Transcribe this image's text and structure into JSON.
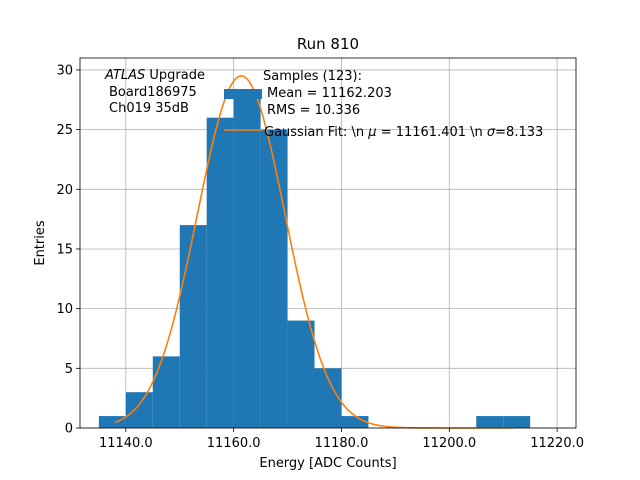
{
  "chart_data": {
    "type": "bar",
    "title": "Run 810",
    "xlabel": "Energy [ADC Counts]",
    "ylabel": "Entries",
    "xlim": [
      11131.5,
      11223.5
    ],
    "ylim": [
      0,
      31
    ],
    "xticks": [
      11140,
      11160,
      11180,
      11200,
      11220
    ],
    "xtick_labels": [
      "11140.0",
      "11160.0",
      "11180.0",
      "11200.0",
      "11220.0"
    ],
    "yticks": [
      0,
      5,
      10,
      15,
      20,
      25,
      30
    ],
    "ytick_labels": [
      "0",
      "5",
      "10",
      "15",
      "20",
      "25",
      "30"
    ],
    "grid": true,
    "bar_color": "#1f77b4",
    "fit_color": "#ff7f0e",
    "bins": [
      {
        "x0": 11135,
        "x1": 11140,
        "count": 1
      },
      {
        "x0": 11140,
        "x1": 11145,
        "count": 3
      },
      {
        "x0": 11145,
        "x1": 11150,
        "count": 6
      },
      {
        "x0": 11150,
        "x1": 11155,
        "count": 17
      },
      {
        "x0": 11155,
        "x1": 11160,
        "count": 26
      },
      {
        "x0": 11160,
        "x1": 11165,
        "count": 28
      },
      {
        "x0": 11165,
        "x1": 11170,
        "count": 25
      },
      {
        "x0": 11170,
        "x1": 11175,
        "count": 9
      },
      {
        "x0": 11175,
        "x1": 11180,
        "count": 5
      },
      {
        "x0": 11180,
        "x1": 11185,
        "count": 1
      },
      {
        "x0": 11185,
        "x1": 11190,
        "count": 0
      },
      {
        "x0": 11190,
        "x1": 11195,
        "count": 0
      },
      {
        "x0": 11195,
        "x1": 11200,
        "count": 0
      },
      {
        "x0": 11200,
        "x1": 11205,
        "count": 0
      },
      {
        "x0": 11205,
        "x1": 11210,
        "count": 1
      },
      {
        "x0": 11210,
        "x1": 11215,
        "count": 1
      }
    ],
    "fit": {
      "type": "gaussian",
      "amplitude": 29.5,
      "mu": 11161.401,
      "sigma": 8.133,
      "x_range": [
        11138,
        11212
      ]
    },
    "atlas_label": {
      "italic": "ATLAS",
      "rest": " Upgrade",
      "lines": [
        "Board186975",
        "Ch019 35dB"
      ]
    },
    "legend": {
      "position": "top-right",
      "samples_lines": [
        "Samples (123):",
        "Mean = 11162.203",
        "RMS = 10.336"
      ],
      "fit_label_parts": [
        {
          "text": "Gaussian Fit: \\n ",
          "italic": false
        },
        {
          "text": "μ",
          "italic": true
        },
        {
          "text": " = 11161.401 \\n ",
          "italic": false
        },
        {
          "text": "σ",
          "italic": true
        },
        {
          "text": "=8.133",
          "italic": false
        }
      ]
    }
  }
}
